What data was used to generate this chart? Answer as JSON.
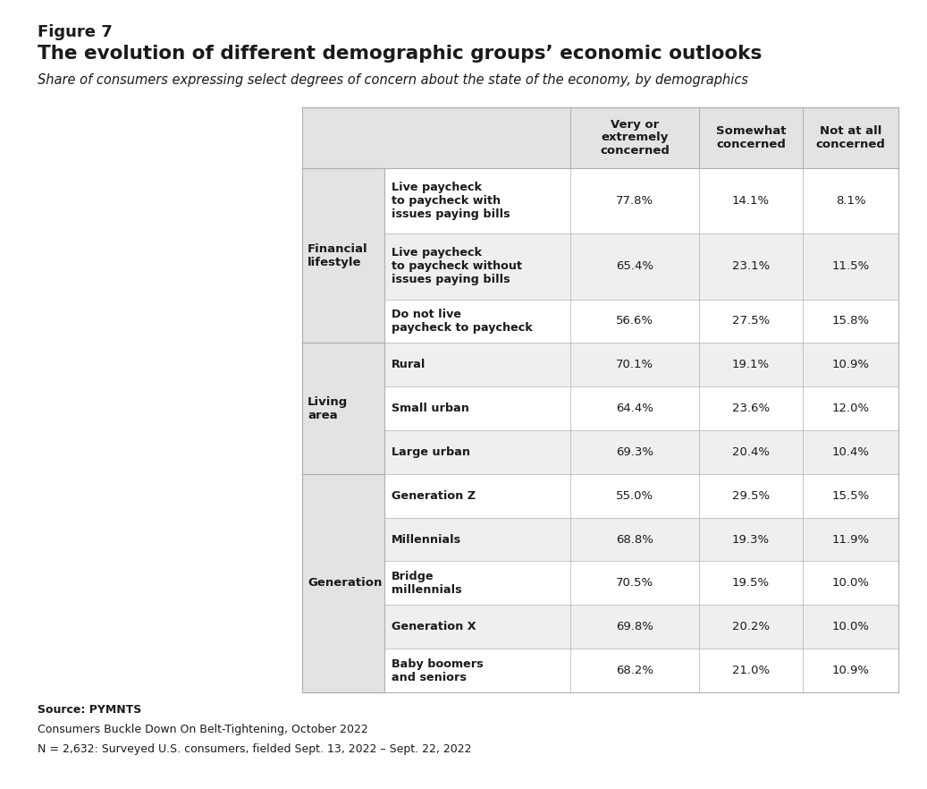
{
  "figure_label": "Figure 7",
  "title": "The evolution of different demographic groups’ economic outlooks",
  "subtitle": "Share of consumers expressing select degrees of concern about the state of the economy, by demographics",
  "col_headers": [
    "Very or\nextremely\nconcerned",
    "Somewhat\nconcerned",
    "Not at all\nconcerned"
  ],
  "source_lines": [
    "Source: PYMNTS",
    "Consumers Buckle Down On Belt-Tightening, October 2022",
    "N = 2,632: Surveyed U.S. consumers, fielded Sept. 13, 2022 – Sept. 22, 2022"
  ],
  "sections": [
    {
      "group_label": "Financial\nlifestyle",
      "rows": [
        {
          "label": "Live paycheck\nto paycheck with\nissues paying bills",
          "values": [
            "77.8%",
            "14.1%",
            "8.1%"
          ],
          "shaded": false
        },
        {
          "label": "Live paycheck\nto paycheck without\nissues paying bills",
          "values": [
            "65.4%",
            "23.1%",
            "11.5%"
          ],
          "shaded": true
        },
        {
          "label": "Do not live\npaycheck to paycheck",
          "values": [
            "56.6%",
            "27.5%",
            "15.8%"
          ],
          "shaded": false
        }
      ]
    },
    {
      "group_label": "Living\narea",
      "rows": [
        {
          "label": "Rural",
          "values": [
            "70.1%",
            "19.1%",
            "10.9%"
          ],
          "shaded": true
        },
        {
          "label": "Small urban",
          "values": [
            "64.4%",
            "23.6%",
            "12.0%"
          ],
          "shaded": false
        },
        {
          "label": "Large urban",
          "values": [
            "69.3%",
            "20.4%",
            "10.4%"
          ],
          "shaded": true
        }
      ]
    },
    {
      "group_label": "Generation",
      "rows": [
        {
          "label": "Generation Z",
          "values": [
            "55.0%",
            "29.5%",
            "15.5%"
          ],
          "shaded": false
        },
        {
          "label": "Millennials",
          "values": [
            "68.8%",
            "19.3%",
            "11.9%"
          ],
          "shaded": true
        },
        {
          "label": "Bridge\nmillennials",
          "values": [
            "70.5%",
            "19.5%",
            "10.0%"
          ],
          "shaded": false
        },
        {
          "label": "Generation X",
          "values": [
            "69.8%",
            "20.2%",
            "10.0%"
          ],
          "shaded": true
        },
        {
          "label": "Baby boomers\nand seniors",
          "values": [
            "68.2%",
            "21.0%",
            "10.9%"
          ],
          "shaded": false
        }
      ]
    }
  ],
  "colors": {
    "background": "#ffffff",
    "header_bg": "#e3e3e3",
    "shaded_row": "#efefef",
    "unshaded_row": "#ffffff",
    "text": "#1a1a1a",
    "border": "#b0b0b0",
    "title_color": "#1a1a1a"
  },
  "section_info": [
    {
      "label": "Financial\nlifestyle",
      "start": 0,
      "end": 2
    },
    {
      "label": "Living\narea",
      "start": 3,
      "end": 5
    },
    {
      "label": "Generation",
      "start": 6,
      "end": 10
    }
  ]
}
